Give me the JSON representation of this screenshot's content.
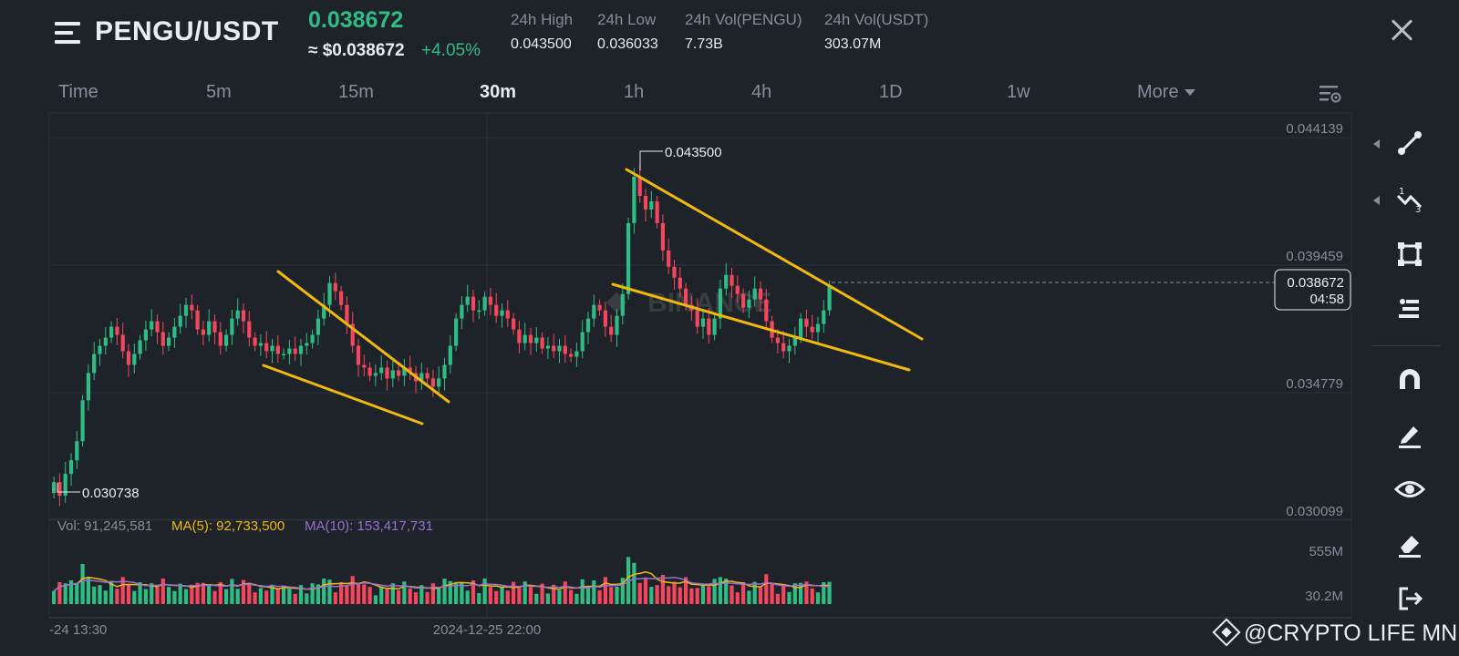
{
  "header": {
    "pair": "PENGU/USDT",
    "last_price": "0.038672",
    "approx_usd": "≈ $0.038672",
    "change_pct": "+4.05%",
    "stats": [
      {
        "label": "24h High",
        "value": "0.043500"
      },
      {
        "label": "24h Low",
        "value": "0.036033"
      },
      {
        "label": "24h Vol(PENGU)",
        "value": "7.73B"
      },
      {
        "label": "24h Vol(USDT)",
        "value": "303.07M"
      }
    ]
  },
  "tabs": [
    {
      "label": "Time",
      "active": false
    },
    {
      "label": "5m",
      "active": false
    },
    {
      "label": "15m",
      "active": false
    },
    {
      "label": "30m",
      "active": true
    },
    {
      "label": "1h",
      "active": false
    },
    {
      "label": "4h",
      "active": false
    },
    {
      "label": "1D",
      "active": false
    },
    {
      "label": "1w",
      "active": false
    },
    {
      "label": "More",
      "active": false
    }
  ],
  "chart": {
    "price_axis": [
      "0.044139",
      "0.039459",
      "0.034779",
      "0.030099"
    ],
    "high_marker": "0.043500",
    "low_marker": "0.030738",
    "current_price": "0.038672",
    "countdown": "04:58",
    "watermark_logo": "BINANCE",
    "time_axis": [
      "-24 13:30",
      "2024-12-25 22:00"
    ],
    "volume": {
      "vol_label": "Vol: 91,245,581",
      "ma5_label": "MA(5): 92,733,500",
      "ma10_label": "MA(10): 153,417,731",
      "axis": [
        "555M",
        "30.2M"
      ]
    },
    "colors": {
      "up": "#2ebd85",
      "down": "#f6465d",
      "trendline": "#f0b90b",
      "ma5": "#f0b90b",
      "ma10": "#9b6fd6"
    }
  },
  "chart_data": {
    "type": "candlestick",
    "ylim": [
      0.030099,
      0.044139
    ],
    "y_ticks": [
      0.044139,
      0.039459,
      0.034779,
      0.030099
    ],
    "x_ticks": [
      "-24 13:30",
      "2024-12-25 22:00"
    ],
    "candles_close": [
      0.0315,
      0.031,
      0.0318,
      0.0323,
      0.033,
      0.0345,
      0.0355,
      0.0362,
      0.0365,
      0.0368,
      0.0372,
      0.0369,
      0.0363,
      0.0358,
      0.0362,
      0.0367,
      0.0371,
      0.0374,
      0.037,
      0.0365,
      0.0368,
      0.0372,
      0.0376,
      0.038,
      0.0378,
      0.0371,
      0.0369,
      0.0374,
      0.037,
      0.0365,
      0.0369,
      0.0375,
      0.0378,
      0.0374,
      0.0368,
      0.0365,
      0.0366,
      0.0363,
      0.0365,
      0.0362,
      0.0362,
      0.0364,
      0.0362,
      0.0365,
      0.0366,
      0.0369,
      0.0375,
      0.038,
      0.0388,
      0.0385,
      0.038,
      0.0373,
      0.0365,
      0.0358,
      0.0357,
      0.0354,
      0.0355,
      0.0357,
      0.0353,
      0.0356,
      0.0354,
      0.0357,
      0.0355,
      0.0352,
      0.0355,
      0.0353,
      0.035,
      0.0353,
      0.0358,
      0.0365,
      0.0375,
      0.038,
      0.0383,
      0.0378,
      0.0378,
      0.0383,
      0.038,
      0.0376,
      0.0378,
      0.0375,
      0.0371,
      0.0366,
      0.0369,
      0.0366,
      0.0368,
      0.0364,
      0.0365,
      0.0363,
      0.0365,
      0.0362,
      0.0361,
      0.0363,
      0.037,
      0.0375,
      0.038,
      0.0378,
      0.0372,
      0.0369,
      0.0376,
      0.0384,
      0.041,
      0.0427,
      0.042,
      0.0415,
      0.0418,
      0.041,
      0.04,
      0.0394,
      0.039,
      0.0386,
      0.038,
      0.0378,
      0.0372,
      0.0375,
      0.0369,
      0.0375,
      0.0386,
      0.0391,
      0.0387,
      0.0384,
      0.0379,
      0.0382,
      0.0386,
      0.0382,
      0.0374,
      0.0368,
      0.0366,
      0.0363,
      0.0365,
      0.0368,
      0.0375,
      0.0372,
      0.037,
      0.0373,
      0.0378,
      0.0387
    ],
    "high": 0.0435,
    "low": 0.030738,
    "last": 0.038672,
    "volume_axis": [
      "555M",
      "30.2M"
    ]
  },
  "toolbar": [
    {
      "name": "trend-line-tool-icon",
      "has_caret": true
    },
    {
      "name": "fib-tool-icon",
      "has_caret": true
    },
    {
      "name": "rectangle-tool-icon",
      "has_caret": false
    },
    {
      "name": "position-tool-icon",
      "has_caret": false
    },
    {
      "name": "magnet-icon",
      "has_caret": false
    },
    {
      "name": "brush-icon",
      "has_caret": false
    },
    {
      "name": "eye-icon",
      "has_caret": false
    },
    {
      "name": "eraser-icon",
      "has_caret": false
    },
    {
      "name": "exit-icon",
      "has_caret": false
    }
  ],
  "watermark": "@CRYPTO LIFE MNE"
}
